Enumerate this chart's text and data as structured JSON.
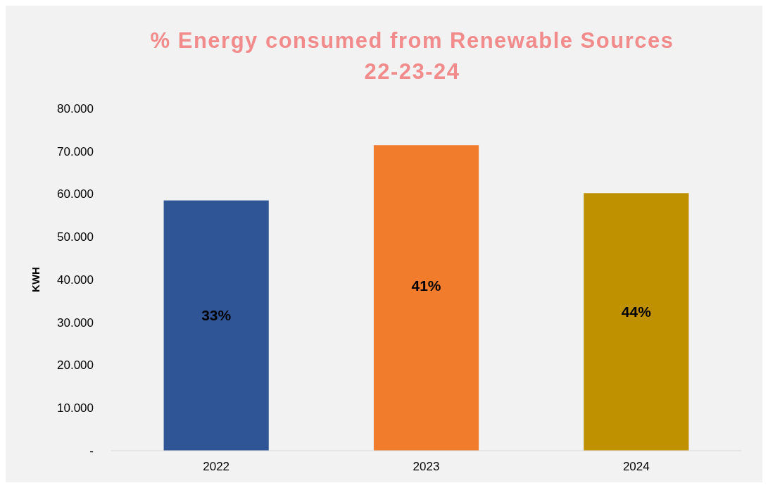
{
  "chart_data": {
    "type": "bar",
    "title": "% Energy consumed from Renewable Sources\n22-23-24",
    "ylabel": "KWH",
    "categories": [
      "2022",
      "2023",
      "2024"
    ],
    "values": [
      58.5,
      71.4,
      60.2
    ],
    "colors": [
      "#2f5597",
      "#f07c2c",
      "#bf9000"
    ],
    "annotations": [
      "33%",
      "41%",
      "44%"
    ],
    "ylim": [
      0,
      80
    ],
    "yticks": [
      {
        "value": 0,
        "label": "-"
      },
      {
        "value": 10,
        "label": "10.000"
      },
      {
        "value": 20,
        "label": "20.000"
      },
      {
        "value": 30,
        "label": "30.000"
      },
      {
        "value": 40,
        "label": "40.000"
      },
      {
        "value": 50,
        "label": "50.000"
      },
      {
        "value": 60,
        "label": "60.000"
      },
      {
        "value": 70,
        "label": "70.000"
      },
      {
        "value": 80,
        "label": "80.000"
      }
    ],
    "grid": false
  }
}
